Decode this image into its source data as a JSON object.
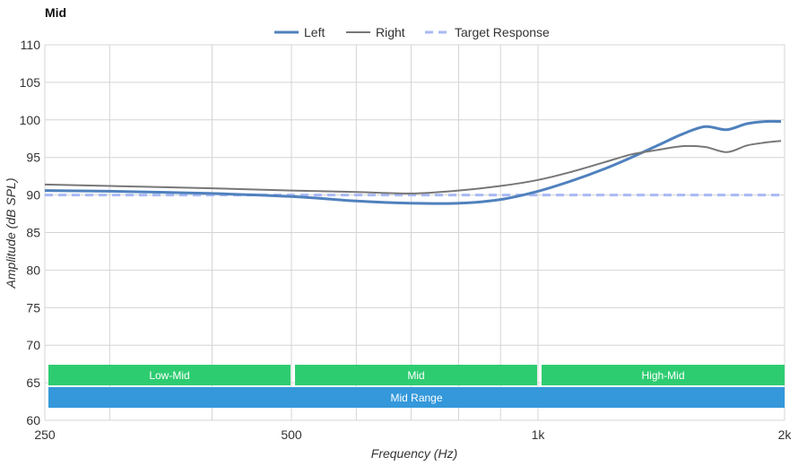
{
  "chart_data": {
    "type": "line",
    "title": "Mid",
    "xlabel": "Frequency (Hz)",
    "ylabel": "Amplitude (dB SPL)",
    "x_scale": "log",
    "xlim": [
      250,
      2000
    ],
    "ylim": [
      60,
      110
    ],
    "x_ticks": [
      {
        "value": 250,
        "label": "250"
      },
      {
        "value": 500,
        "label": "500"
      },
      {
        "value": 1000,
        "label": "1k"
      },
      {
        "value": 2000,
        "label": "2k"
      }
    ],
    "x_grid": [
      250,
      300,
      400,
      500,
      600,
      700,
      800,
      900,
      1000,
      2000
    ],
    "y_ticks": [
      60,
      65,
      70,
      75,
      80,
      85,
      90,
      95,
      100,
      105,
      110
    ],
    "grid": true,
    "legend_position": "top-center",
    "series": [
      {
        "name": "Left",
        "color": "#4f81bd",
        "style": "solid-thick",
        "x": [
          250,
          300,
          400,
          500,
          600,
          700,
          800,
          900,
          1000,
          1100,
          1200,
          1300,
          1400,
          1500,
          1600,
          1700,
          1800,
          1900,
          1980
        ],
        "y": [
          90.6,
          90.5,
          90.2,
          89.8,
          89.2,
          88.9,
          88.9,
          89.4,
          90.5,
          91.9,
          93.4,
          95.0,
          96.6,
          98.1,
          99.1,
          98.7,
          99.5,
          99.8,
          99.8
        ]
      },
      {
        "name": "Right",
        "color": "#777777",
        "style": "solid",
        "x": [
          250,
          300,
          400,
          500,
          600,
          700,
          800,
          900,
          1000,
          1100,
          1200,
          1300,
          1400,
          1500,
          1600,
          1700,
          1800,
          1900,
          1980
        ],
        "y": [
          91.4,
          91.2,
          90.9,
          90.6,
          90.4,
          90.2,
          90.6,
          91.2,
          92.0,
          93.1,
          94.3,
          95.4,
          96.0,
          96.5,
          96.4,
          95.7,
          96.6,
          97.0,
          97.2
        ]
      },
      {
        "name": "Target Response",
        "color": "#a9b9f5",
        "style": "dashed",
        "x": [
          250,
          1980
        ],
        "y": [
          90,
          90
        ]
      }
    ],
    "bands": [
      {
        "label": "Low-Mid",
        "from": 250,
        "to": 500,
        "row": 0,
        "color": "#2ecc71"
      },
      {
        "label": "Mid",
        "from": 500,
        "to": 1000,
        "row": 0,
        "color": "#2ecc71"
      },
      {
        "label": "High-Mid",
        "from": 1000,
        "to": 2000,
        "row": 0,
        "color": "#2ecc71"
      },
      {
        "label": "Mid Range",
        "from": 250,
        "to": 2000,
        "row": 1,
        "color": "#3498db"
      }
    ]
  }
}
